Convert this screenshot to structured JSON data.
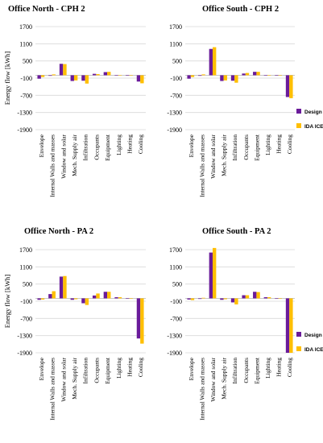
{
  "colors": {
    "design_builder": "#6a1b9a",
    "ida_ice": "#ffbf00",
    "grid": "#d9d9d9",
    "axis": "#bfbfbf"
  },
  "ylabel": "Energy flow [kWh]",
  "legend": [
    "Design Builder",
    "IDA ICE"
  ],
  "chart_data": [
    {
      "type": "bar",
      "title": "Office North - CPH 2",
      "categories": [
        "Envelope",
        "Internal Walls and masses",
        "Window and solar",
        "Mech. Supply air",
        "Infiltration",
        "Occupants",
        "Equipment",
        "Lighting",
        "Heating",
        "Cooling"
      ],
      "yticks": [
        "1700",
        "1100",
        "500",
        "-100",
        "-700",
        "-1300",
        "-1900"
      ],
      "ylim": [
        -1900,
        1700
      ],
      "series": [
        {
          "name": "Design Builder",
          "values": [
            -120,
            -20,
            400,
            -200,
            -190,
            50,
            110,
            10,
            0,
            -220
          ]
        },
        {
          "name": "IDA ICE",
          "values": [
            -60,
            30,
            390,
            -180,
            -290,
            40,
            120,
            10,
            0,
            -280
          ]
        }
      ]
    },
    {
      "type": "bar",
      "title": "Office South - CPH 2",
      "categories": [
        "Envelope",
        "Internal Walls and masses",
        "Window and solar",
        "Mech. Supply air",
        "Infiltration",
        "Occupants",
        "Equipment",
        "Lighting",
        "Heating",
        "Cooling"
      ],
      "yticks": [
        "1700",
        "1100",
        "500",
        "-100",
        "-700",
        "-1300",
        "-1900"
      ],
      "ylim": [
        -1900,
        1700
      ],
      "series": [
        {
          "name": "Design Builder",
          "values": [
            -120,
            -20,
            920,
            -200,
            -190,
            60,
            120,
            10,
            0,
            -760
          ]
        },
        {
          "name": "IDA ICE",
          "values": [
            -60,
            30,
            980,
            -180,
            -260,
            80,
            120,
            10,
            0,
            -800
          ]
        }
      ]
    },
    {
      "type": "bar",
      "title": "Office North - PA 2",
      "categories": [
        "Envelope",
        "Internal Walls and masses",
        "Window and solar",
        "Mech. Supply air",
        "Infiltration",
        "Occupants",
        "Equipment",
        "Lighting",
        "Heating",
        "Cooling"
      ],
      "yticks": [
        "1700",
        "1100",
        "500",
        "-100",
        "-700",
        "-1300",
        "-1900"
      ],
      "ylim": [
        -1900,
        1700
      ],
      "series": [
        {
          "name": "Design Builder",
          "values": [
            -50,
            150,
            760,
            -50,
            -170,
            100,
            230,
            40,
            0,
            -1400
          ]
        },
        {
          "name": "IDA ICE",
          "values": [
            -40,
            250,
            780,
            -30,
            -230,
            170,
            230,
            40,
            0,
            -1580
          ]
        }
      ]
    },
    {
      "type": "bar",
      "title": "Office South - PA 2",
      "categories": [
        "Envelope",
        "Internal Walls and masses",
        "Window and solar",
        "Mech. Supply air",
        "Infiltration",
        "Occupants",
        "Equipment",
        "Lighting",
        "Heating",
        "Cooling"
      ],
      "yticks": [
        "1700",
        "1100",
        "500",
        "-100",
        "-700",
        "-1300",
        "-1900"
      ],
      "ylim": [
        -1900,
        1700
      ],
      "series": [
        {
          "name": "Design Builder",
          "values": [
            -40,
            -20,
            1600,
            -50,
            -140,
            110,
            230,
            40,
            0,
            -1900
          ]
        },
        {
          "name": "IDA ICE",
          "values": [
            -60,
            20,
            1760,
            -30,
            -210,
            110,
            220,
            40,
            0,
            -1900
          ]
        }
      ]
    }
  ]
}
